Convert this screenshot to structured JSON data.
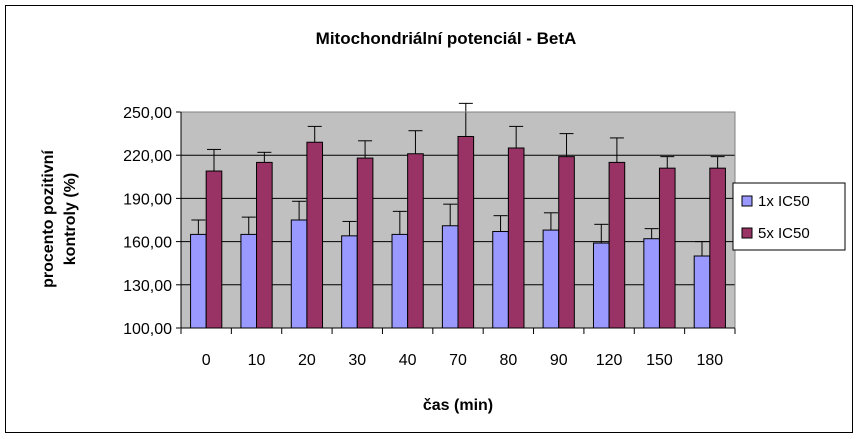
{
  "chart_data": {
    "type": "bar",
    "title": "Mitochondriální potenciál - BetA",
    "xlabel": "čas (min)",
    "ylabel_lines": [
      "procento pozitivní",
      "kontroly (%)"
    ],
    "categories": [
      "0",
      "10",
      "20",
      "30",
      "40",
      "70",
      "80",
      "90",
      "120",
      "150",
      "180"
    ],
    "ylim": [
      100,
      250
    ],
    "yticks": [
      100,
      130,
      160,
      190,
      220,
      250
    ],
    "ytick_labels": [
      "100,00",
      "130,00",
      "160,00",
      "190,00",
      "220,00",
      "250,00"
    ],
    "grid": true,
    "legend_position": "right",
    "plot_background": "#c0c0c0",
    "series": [
      {
        "name": "1x IC50",
        "color": "#9999ff",
        "values": [
          165,
          165,
          175,
          164,
          165,
          171,
          167,
          168,
          159,
          162,
          150
        ],
        "errors": [
          10,
          12,
          13,
          10,
          16,
          15,
          11,
          12,
          13,
          7,
          10
        ]
      },
      {
        "name": "5x IC50",
        "color": "#993366",
        "values": [
          209,
          215,
          229,
          218,
          221,
          233,
          225,
          219,
          215,
          211,
          211
        ],
        "errors": [
          15,
          7,
          11,
          12,
          16,
          23,
          15,
          16,
          17,
          8,
          8
        ]
      }
    ]
  }
}
